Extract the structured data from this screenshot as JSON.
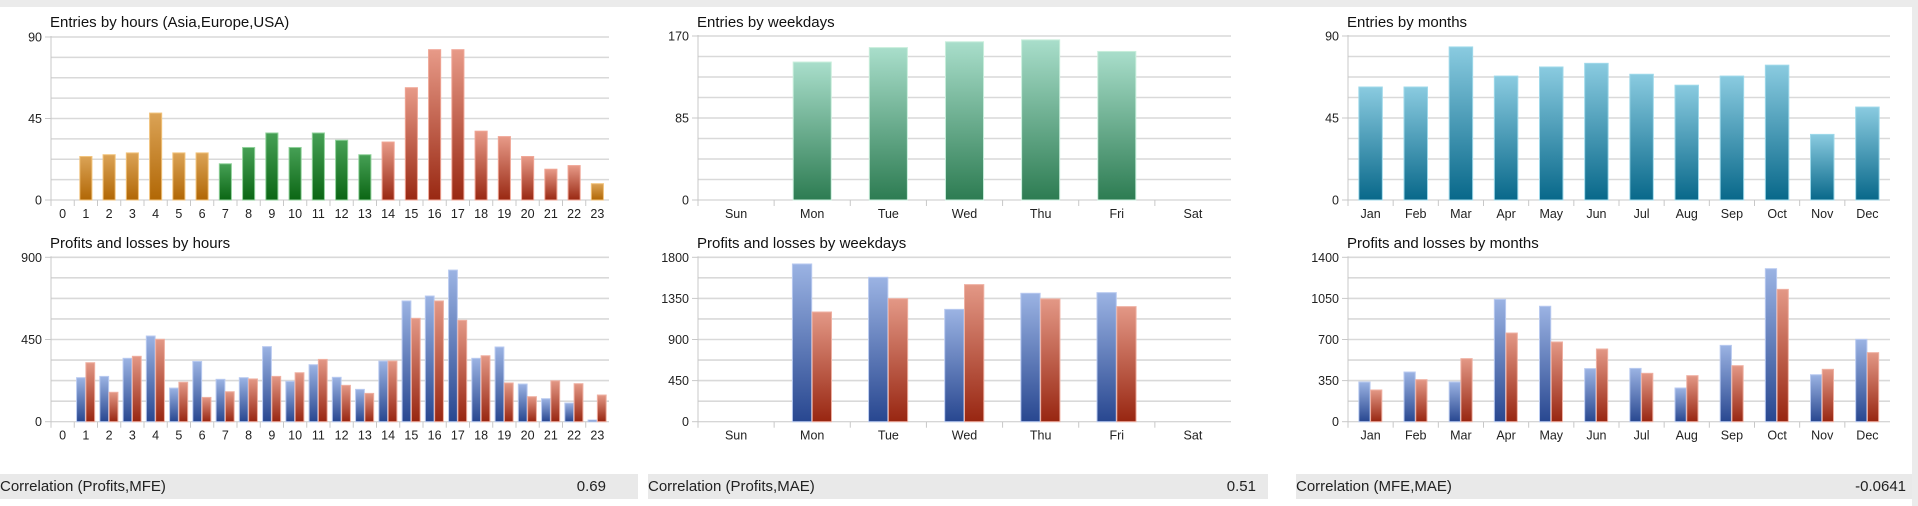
{
  "footer": [
    {
      "label": "Correlation (Profits,MFE)",
      "value": "0.69"
    },
    {
      "label": "Correlation (Profits,MAE)",
      "value": "0.51"
    },
    {
      "label": "Correlation (MFE,MAE)",
      "value": "-0.0641"
    }
  ],
  "colors": {
    "asia_top": "#dba356",
    "asia_bottom": "#b16705",
    "europe_top": "#46a055",
    "europe_bottom": "#0b6614",
    "usa_top": "#e79a88",
    "usa_bottom": "#992812",
    "weekday_top": "#a9decb",
    "weekday_bottom": "#2d7c52",
    "month_top": "#8acbe0",
    "month_bottom": "#08688a",
    "profit_top": "#9bb3e3",
    "profit_bottom": "#284790",
    "loss_top": "#e39886",
    "loss_bottom": "#982611"
  },
  "chart_data": [
    {
      "id": "entries-hours",
      "type": "bar",
      "title": "Entries by hours (Asia,Europe,USA)",
      "xlabel": "",
      "ylabel": "",
      "ylim": [
        0,
        90
      ],
      "yticks": [
        "0",
        "45",
        "90"
      ],
      "grid": true,
      "categories": [
        "0",
        "1",
        "2",
        "3",
        "4",
        "5",
        "6",
        "7",
        "8",
        "9",
        "10",
        "11",
        "12",
        "13",
        "14",
        "15",
        "16",
        "17",
        "18",
        "19",
        "20",
        "21",
        "22",
        "23"
      ],
      "values": [
        0,
        24,
        25,
        26,
        48,
        26,
        26,
        20,
        29,
        37,
        29,
        37,
        33,
        25,
        32,
        62,
        83,
        83,
        38,
        35,
        24,
        17,
        19,
        9
      ],
      "session": [
        "asia",
        "asia",
        "asia",
        "asia",
        "asia",
        "asia",
        "asia",
        "europe",
        "europe",
        "europe",
        "europe",
        "europe",
        "europe",
        "europe",
        "usa",
        "usa",
        "usa",
        "usa",
        "usa",
        "usa",
        "usa",
        "usa",
        "usa",
        "asia"
      ]
    },
    {
      "id": "entries-weekdays",
      "type": "bar",
      "title": "Entries by weekdays",
      "xlabel": "",
      "ylabel": "",
      "ylim": [
        0,
        170
      ],
      "yticks": [
        "0",
        "85",
        "170"
      ],
      "grid": true,
      "categories": [
        "Sun",
        "Mon",
        "Tue",
        "Wed",
        "Thu",
        "Fri",
        "Sat"
      ],
      "values": [
        0,
        143,
        158,
        164,
        166,
        154,
        0
      ]
    },
    {
      "id": "entries-months",
      "type": "bar",
      "title": "Entries by months",
      "xlabel": "",
      "ylabel": "",
      "ylim": [
        0,
        90
      ],
      "yticks": [
        "0",
        "45",
        "90"
      ],
      "grid": true,
      "categories": [
        "Jan",
        "Feb",
        "Mar",
        "Apr",
        "May",
        "Jun",
        "Jul",
        "Aug",
        "Sep",
        "Oct",
        "Nov",
        "Dec"
      ],
      "values": [
        62,
        62,
        84,
        68,
        73,
        75,
        69,
        63,
        68,
        74,
        36,
        51
      ]
    },
    {
      "id": "pl-hours",
      "type": "bar",
      "title": "Profits and losses by hours",
      "xlabel": "",
      "ylabel": "",
      "ylim": [
        0,
        900
      ],
      "yticks": [
        "0",
        "450",
        "900"
      ],
      "grid": true,
      "categories": [
        "0",
        "1",
        "2",
        "3",
        "4",
        "5",
        "6",
        "7",
        "8",
        "9",
        "10",
        "11",
        "12",
        "13",
        "14",
        "15",
        "16",
        "17",
        "18",
        "19",
        "20",
        "21",
        "22",
        "23"
      ],
      "series": [
        {
          "name": "Profits",
          "values": [
            0,
            241,
            248,
            347,
            469,
            184,
            330,
            232,
            241,
            411,
            221,
            312,
            243,
            177,
            332,
            661,
            688,
            830,
            347,
            409,
            206,
            126,
            102,
            9
          ]
        },
        {
          "name": "Losses",
          "values": [
            0,
            323,
            161,
            358,
            451,
            216,
            133,
            164,
            234,
            248,
            268,
            341,
            199,
            155,
            332,
            566,
            661,
            555,
            361,
            212,
            137,
            224,
            208,
            146
          ]
        }
      ]
    },
    {
      "id": "pl-weekdays",
      "type": "bar",
      "title": "Profits and losses by weekdays",
      "xlabel": "",
      "ylabel": "",
      "ylim": [
        0,
        1800
      ],
      "yticks": [
        "0",
        "450",
        "900",
        "1350",
        "1800"
      ],
      "grid": true,
      "categories": [
        "Sun",
        "Mon",
        "Tue",
        "Wed",
        "Thu",
        "Fri",
        "Sat"
      ],
      "series": [
        {
          "name": "Profits",
          "values": [
            0,
            1727,
            1581,
            1230,
            1406,
            1413,
            0
          ]
        },
        {
          "name": "Losses",
          "values": [
            0,
            1201,
            1347,
            1501,
            1344,
            1260,
            0
          ]
        }
      ]
    },
    {
      "id": "pl-months",
      "type": "bar",
      "title": "Profits and losses by months",
      "xlabel": "",
      "ylabel": "",
      "ylim": [
        0,
        1400
      ],
      "yticks": [
        "0",
        "350",
        "700",
        "1050",
        "1400"
      ],
      "grid": true,
      "categories": [
        "Jan",
        "Feb",
        "Mar",
        "Apr",
        "May",
        "Jun",
        "Jul",
        "Aug",
        "Sep",
        "Oct",
        "Nov",
        "Dec"
      ],
      "series": [
        {
          "name": "Profits",
          "values": [
            338,
            423,
            338,
            1042,
            983,
            452,
            454,
            287,
            650,
            1303,
            400,
            701
          ]
        },
        {
          "name": "Losses",
          "values": [
            270,
            358,
            537,
            755,
            679,
            619,
            412,
            392,
            477,
            1127,
            446,
            588
          ]
        }
      ]
    }
  ]
}
